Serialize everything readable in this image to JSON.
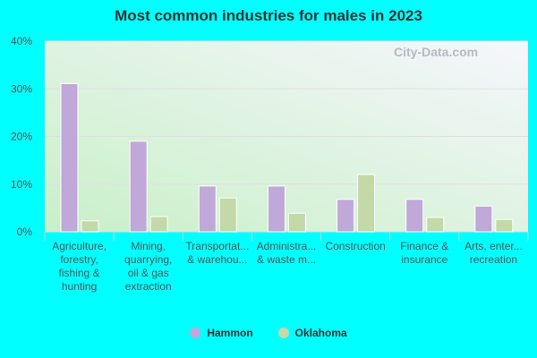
{
  "chart_data": {
    "type": "bar",
    "title": "Most common industries for males in 2023",
    "categories": [
      [
        "Agriculture,",
        "forestry,",
        "fishing &",
        "hunting"
      ],
      [
        "Mining,",
        "quarrying,",
        "oil & gas",
        "extraction"
      ],
      [
        "Transportat...",
        "& warehou..."
      ],
      [
        "Administra...",
        "& waste m..."
      ],
      [
        "Construction"
      ],
      [
        "Finance &",
        "insurance"
      ],
      [
        "Arts, enter...",
        "recreation"
      ]
    ],
    "series": [
      {
        "name": "Hammon",
        "color": "#c0a8d8",
        "values": [
          31.1,
          19.0,
          9.6,
          9.6,
          6.8,
          6.8,
          5.4
        ]
      },
      {
        "name": "Oklahoma",
        "color": "#c4d9a8",
        "values": [
          2.3,
          3.2,
          7.1,
          3.9,
          12.0,
          3.0,
          2.6
        ]
      }
    ],
    "ylim": [
      0,
      40
    ],
    "yticks": [
      "0%",
      "10%",
      "20%",
      "30%",
      "40%"
    ],
    "grid": true,
    "legend": "bottom"
  },
  "watermark": "City-Data.com"
}
